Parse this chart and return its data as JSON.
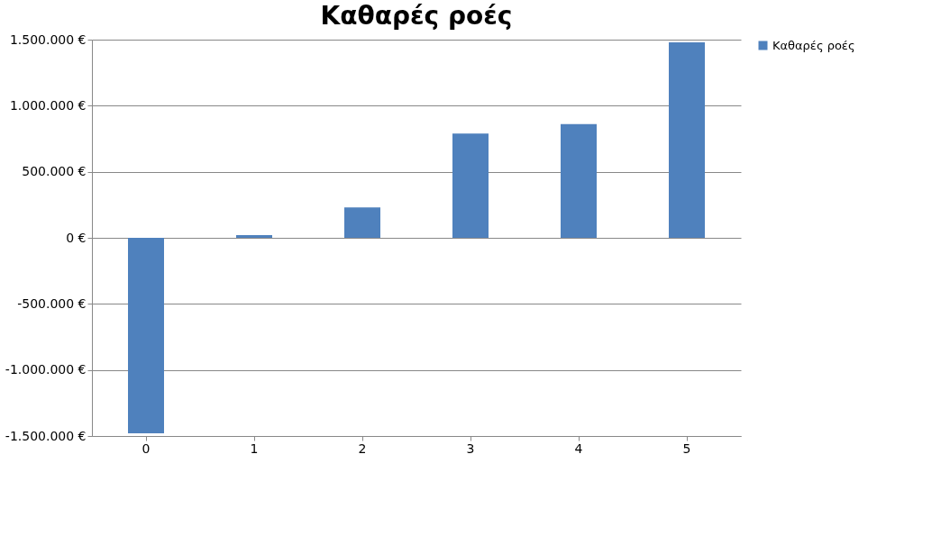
{
  "chart_data": {
    "type": "bar",
    "title": "Καθαρές ροές",
    "categories": [
      "0",
      "1",
      "2",
      "3",
      "4",
      "5"
    ],
    "series": [
      {
        "name": "Καθαρές ροές",
        "color": "#4f81bd",
        "values": [
          -1480000,
          20000,
          230000,
          790000,
          860000,
          1480000
        ]
      }
    ],
    "ylim": [
      -1500000,
      1500000
    ],
    "yticks": [
      {
        "value": -1500000,
        "label": "-1.500.000 €"
      },
      {
        "value": -1000000,
        "label": "-1.000.000 €"
      },
      {
        "value": -500000,
        "label": "-500.000 €"
      },
      {
        "value": 0,
        "label": "0 €"
      },
      {
        "value": 500000,
        "label": "500.000 €"
      },
      {
        "value": 1000000,
        "label": "1.000.000 €"
      },
      {
        "value": 1500000,
        "label": "1.500.000 €"
      }
    ],
    "grid": "y",
    "legend": "right"
  }
}
